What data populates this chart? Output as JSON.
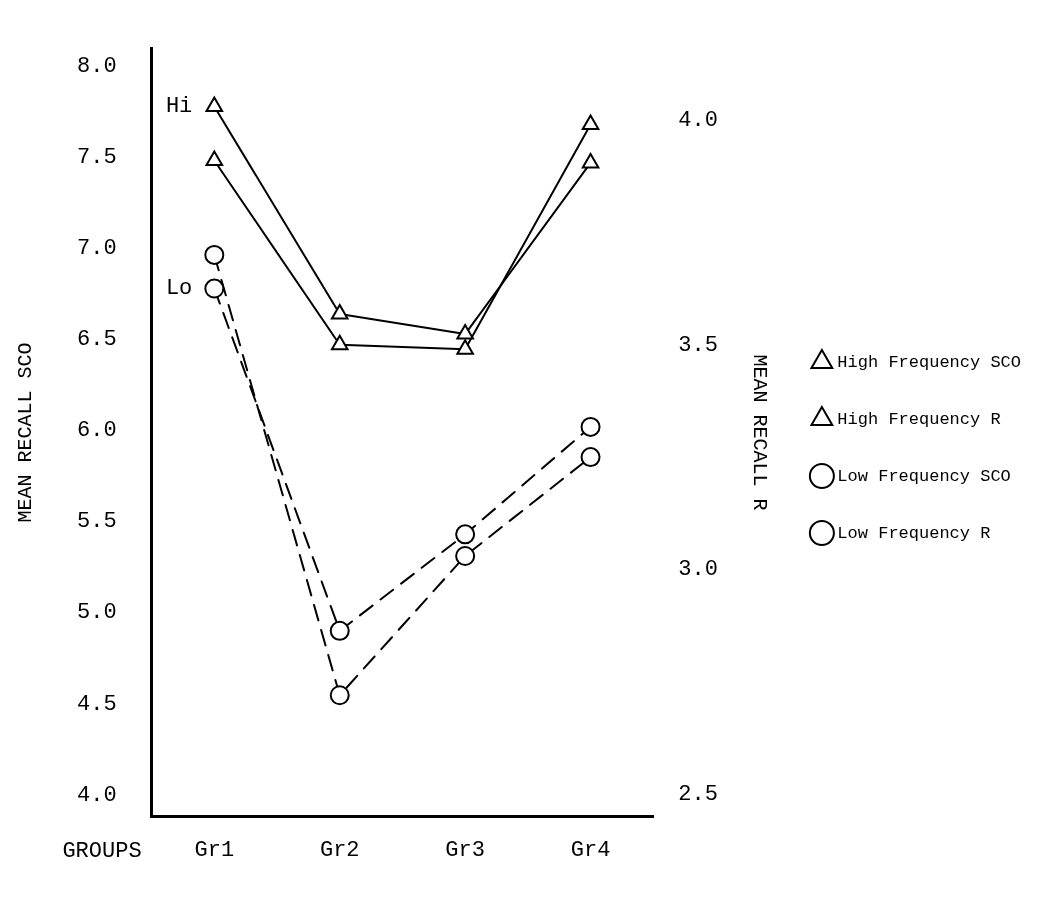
{
  "chart_data": {
    "type": "line",
    "categories": [
      "Gr1",
      "Gr2",
      "Gr3",
      "Gr4"
    ],
    "xlabel": "GROUPS",
    "ylabel": "MEAN RECALL SCO",
    "y2label": "MEAN RECALL R",
    "ylim": [
      3.88,
      8.1
    ],
    "yticks": [
      {
        "value": 4,
        "label": "4.0"
      },
      {
        "value": 4.5,
        "label": "4.5"
      },
      {
        "value": 5,
        "label": "5.0"
      },
      {
        "value": 5.5,
        "label": "5.5"
      },
      {
        "value": 6,
        "label": "6.0"
      },
      {
        "value": 6.5,
        "label": "6.5"
      },
      {
        "value": 7,
        "label": "7.0"
      },
      {
        "value": 7.5,
        "label": "7.5"
      },
      {
        "value": 8,
        "label": "8.0"
      }
    ],
    "y2lim": [
      2.45,
      4.16
    ],
    "y2ticks": [
      2.5,
      {
        "value": 3,
        "label": "3.0"
      },
      3.5,
      {
        "value": 4,
        "label": "4.0"
      }
    ],
    "series": [
      {
        "name": "High Frequency SCO",
        "color": "#000000",
        "values": [
          7.78,
          6.64,
          6.53,
          7.47
        ],
        "marker": "triangle",
        "line_style": "solid"
      },
      {
        "name": "High Frequency R",
        "color": "#000000",
        "values": [
          3.91,
          3.5,
          3.49,
          3.99
        ],
        "axis": "y2",
        "marker": "triangle",
        "line_style": "solid"
      },
      {
        "name": "Low Frequency SCO",
        "color": "#000000",
        "values": [
          6.78,
          4.9,
          5.43,
          6.02
        ],
        "marker": "circle",
        "line_style": "dashed"
      },
      {
        "name": "Low Frequency R",
        "color": "#000000",
        "values": [
          3.7,
          2.72,
          3.03,
          3.25
        ],
        "axis": "y2",
        "marker": "circle",
        "line_style": "dashed"
      }
    ],
    "annotations": [
      {
        "text": "Hi",
        "x": "Gr1",
        "y": 7.78
      },
      {
        "text": "Lo",
        "x": "Gr1",
        "y": 6.78
      }
    ],
    "grid": false,
    "legend": "right"
  }
}
